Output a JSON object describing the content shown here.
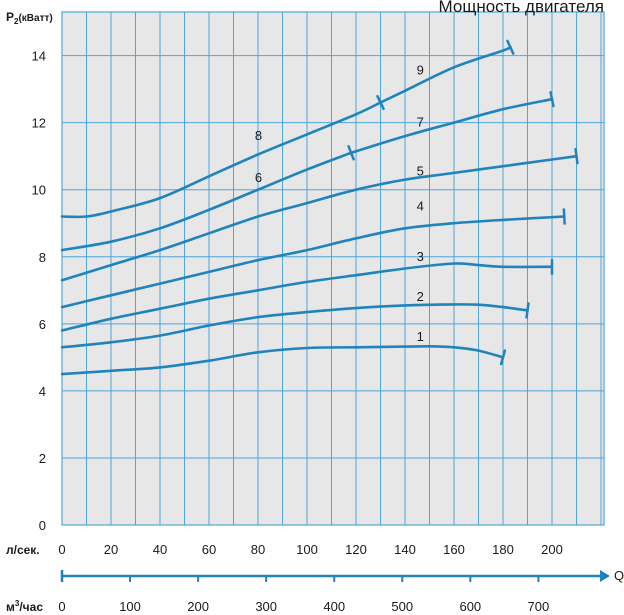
{
  "chart_data": {
    "type": "line",
    "title": "Мощность двигателя",
    "ylabel_main": "P",
    "ylabel_sub": "2",
    "ylabel_unit": "(кВатт)",
    "xlabel_ls": "л/сек.",
    "xlabel_m3_pre": "м",
    "xlabel_m3_sup": "3",
    "xlabel_m3_post": "/час",
    "q_label": "Q",
    "ylim": [
      0,
      15.3
    ],
    "xlim": [
      0,
      220
    ],
    "yticks": [
      0,
      2,
      4,
      6,
      8,
      10,
      12,
      14
    ],
    "xticks_ls": [
      0,
      20,
      40,
      60,
      80,
      100,
      120,
      140,
      160,
      180,
      200
    ],
    "xticks_m3": [
      0,
      100,
      200,
      300,
      400,
      500,
      600,
      700
    ],
    "m3_per_ls": 3.6,
    "grid": true,
    "colors": {
      "curve": "#1f83bd",
      "grid": "#4da6dc",
      "plot_bg": "#e7e7e7",
      "axis": "#1f83bd"
    },
    "series": [
      {
        "name": "1",
        "label_x": 148,
        "label_y": 5.6,
        "end_mark": true,
        "x": [
          0,
          20,
          40,
          60,
          80,
          100,
          120,
          140,
          150,
          160,
          170,
          180
        ],
        "y": [
          4.5,
          4.6,
          4.7,
          4.9,
          5.15,
          5.28,
          5.3,
          5.32,
          5.33,
          5.3,
          5.2,
          5.0
        ]
      },
      {
        "name": "2",
        "label_x": 148,
        "label_y": 6.8,
        "end_mark": true,
        "x": [
          0,
          20,
          40,
          60,
          80,
          100,
          120,
          140,
          160,
          170,
          180,
          190
        ],
        "y": [
          5.3,
          5.45,
          5.65,
          5.95,
          6.2,
          6.35,
          6.47,
          6.55,
          6.58,
          6.57,
          6.5,
          6.4
        ]
      },
      {
        "name": "3",
        "label_x": 148,
        "label_y": 8.0,
        "end_mark": true,
        "x": [
          0,
          20,
          40,
          60,
          80,
          100,
          120,
          140,
          160,
          170,
          180,
          200
        ],
        "y": [
          5.8,
          6.15,
          6.45,
          6.75,
          7.0,
          7.25,
          7.45,
          7.65,
          7.8,
          7.75,
          7.7,
          7.7
        ]
      },
      {
        "name": "4",
        "label_x": 148,
        "label_y": 9.5,
        "end_mark": true,
        "x": [
          0,
          20,
          40,
          60,
          80,
          100,
          120,
          140,
          160,
          180,
          205
        ],
        "y": [
          6.5,
          6.85,
          7.2,
          7.55,
          7.9,
          8.2,
          8.55,
          8.85,
          9.0,
          9.1,
          9.2
        ]
      },
      {
        "name": "5",
        "label_x": 148,
        "label_y": 10.55,
        "end_mark": true,
        "x": [
          0,
          20,
          40,
          60,
          80,
          100,
          120,
          140,
          160,
          180,
          200,
          210
        ],
        "y": [
          7.3,
          7.75,
          8.2,
          8.7,
          9.2,
          9.6,
          10.0,
          10.3,
          10.5,
          10.7,
          10.9,
          11.0
        ]
      },
      {
        "name": "6",
        "label_x": 82,
        "label_y": 10.35,
        "end_mark": false,
        "x": [
          0,
          20,
          40,
          60,
          80,
          100,
          118
        ],
        "y": [
          8.2,
          8.45,
          8.85,
          9.4,
          10.0,
          10.6,
          11.1
        ]
      },
      {
        "name": "7",
        "label_x": 148,
        "label_y": 12.0,
        "end_mark": true,
        "x": [
          118,
          140,
          160,
          180,
          200
        ],
        "y": [
          11.1,
          11.6,
          12.0,
          12.4,
          12.7
        ]
      },
      {
        "name": "8",
        "label_x": 82,
        "label_y": 11.6,
        "end_mark": false,
        "x": [
          0,
          10,
          20,
          40,
          60,
          80,
          100,
          120,
          130
        ],
        "y": [
          9.2,
          9.2,
          9.35,
          9.75,
          10.4,
          11.05,
          11.65,
          12.25,
          12.6
        ]
      },
      {
        "name": "9",
        "label_x": 148,
        "label_y": 13.55,
        "end_mark": true,
        "x": [
          130,
          140,
          160,
          180,
          183
        ],
        "y": [
          12.6,
          12.95,
          13.65,
          14.15,
          14.25
        ]
      }
    ],
    "breaks": [
      {
        "x": 118,
        "y": 11.1
      },
      {
        "x": 130,
        "y": 12.6
      }
    ]
  }
}
